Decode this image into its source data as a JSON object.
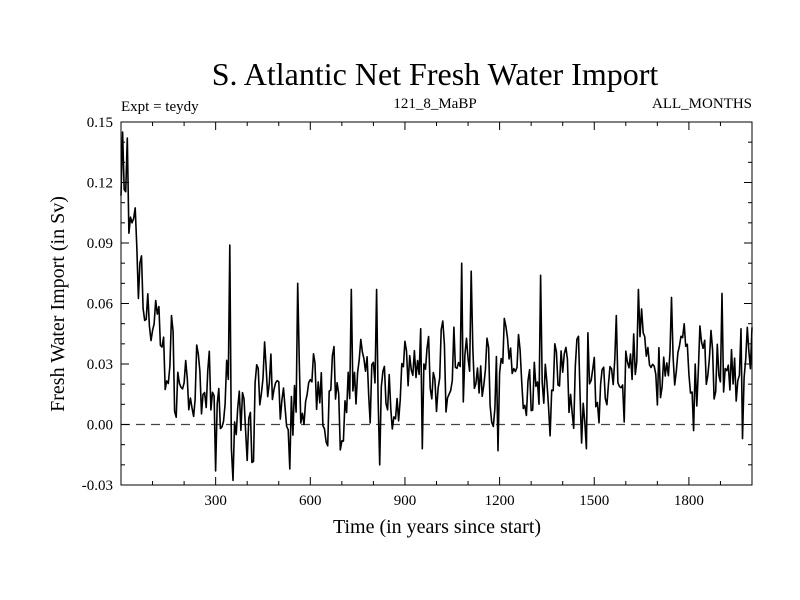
{
  "chart_data": {
    "type": "line",
    "title": "S. Atlantic Net Fresh Water Import",
    "subtitle_left": "Expt = teydy",
    "subtitle_center": "121_8_MaBP",
    "subtitle_right": "ALL_MONTHS",
    "xlabel": "Time (in years since start)",
    "ylabel": "Fresh Water Import (in Sv)",
    "xlim": [
      0,
      2000
    ],
    "ylim": [
      -0.03,
      0.15
    ],
    "xticks": [
      300,
      600,
      900,
      1200,
      1500,
      1800
    ],
    "xtick_labels": [
      "300",
      "600",
      "900",
      "1200",
      "1500",
      "1800"
    ],
    "yticks": [
      -0.03,
      0,
      0.03,
      0.06,
      0.09,
      0.12,
      0.15
    ],
    "ytick_labels": [
      "-0.03",
      "0.00",
      "0.03",
      "0.06",
      "0.09",
      "0.12",
      "0.15"
    ],
    "reference_line": {
      "y": 0.0,
      "style": "dashed"
    },
    "series": [
      {
        "name": "S. Atlantic Net Fresh Water Import",
        "x_start": 0,
        "x_step": 5,
        "trend_knots": [
          [
            0,
            0.12
          ],
          [
            30,
            0.09
          ],
          [
            80,
            0.06
          ],
          [
            150,
            0.03
          ],
          [
            250,
            0.01
          ],
          [
            400,
            0.008
          ],
          [
            550,
            0.01
          ],
          [
            700,
            0.015
          ],
          [
            800,
            0.018
          ],
          [
            900,
            0.022
          ],
          [
            1050,
            0.028
          ],
          [
            1200,
            0.025
          ],
          [
            1350,
            0.025
          ],
          [
            1500,
            0.022
          ],
          [
            1650,
            0.03
          ],
          [
            1800,
            0.027
          ],
          [
            2000,
            0.028
          ]
        ],
        "noise_amplitude": 0.014,
        "seed": 7,
        "spikes": [
          [
            5,
            0.145
          ],
          [
            20,
            0.142
          ],
          [
            35,
            0.1
          ],
          [
            60,
            0.08
          ],
          [
            345,
            0.089
          ],
          [
            560,
            0.07
          ],
          [
            730,
            0.067
          ],
          [
            810,
            0.067
          ],
          [
            1080,
            0.08
          ],
          [
            1110,
            0.076
          ],
          [
            1330,
            0.074
          ],
          [
            1640,
            0.067
          ],
          [
            1905,
            0.065
          ],
          [
            1745,
            0.063
          ],
          [
            300,
            -0.023
          ],
          [
            535,
            -0.022
          ],
          [
            820,
            -0.02
          ],
          [
            1195,
            -0.013
          ],
          [
            1475,
            -0.012
          ],
          [
            1970,
            -0.007
          ],
          [
            955,
            -0.012
          ]
        ]
      }
    ]
  }
}
